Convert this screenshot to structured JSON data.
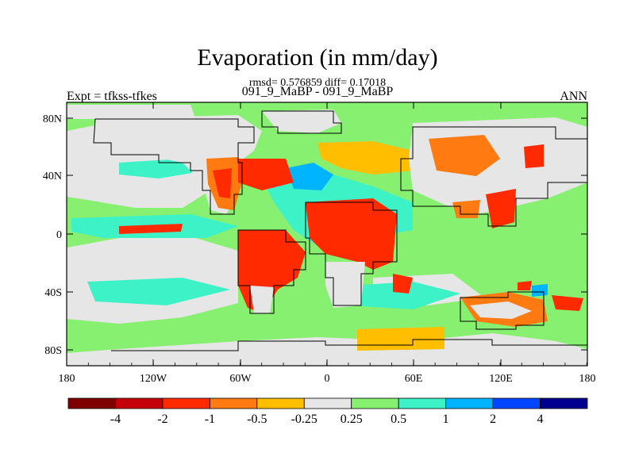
{
  "title": "Evaporation (in mm/day)",
  "stats": "rmsd= 0.576859 diff= 0.17018",
  "subtitle": "091_9_MaBP - 091_9_MaBP",
  "left_label": "Expt = tfkss-tfkes",
  "right_label": "ANN",
  "lat_labels": [
    "80N",
    "40N",
    "0",
    "40S",
    "80S"
  ],
  "lon_labels": [
    "180",
    "120W",
    "60W",
    "0",
    "60E",
    "120E",
    "180"
  ],
  "colorbar": {
    "labels": [
      "-4",
      "-2",
      "-1",
      "-0.5",
      "-0.25",
      "0.25",
      "0.5",
      "1",
      "2",
      "4"
    ],
    "colors": [
      "#7f0000",
      "#c4000a",
      "#ff2a00",
      "#ff7a10",
      "#ffbe00",
      "#e6e6e6",
      "#88f070",
      "#3ef2c8",
      "#00b4ff",
      "#0046ff",
      "#000090"
    ]
  },
  "colors": {
    "land_zero": "#e6e6e6",
    "ocean_weak": "#88f070",
    "ocean_mid": "#3ef2c8",
    "ocean_strong": "#00b4ff",
    "land_neg_small": "#ffbe00",
    "land_neg_mid": "#ff7a10",
    "land_neg_large": "#ff2a00"
  }
}
